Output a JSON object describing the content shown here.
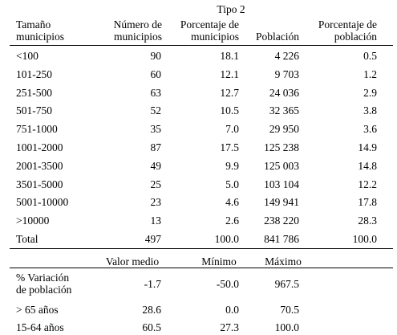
{
  "title": "Tipo 2",
  "headers": {
    "size_line1": "Tamaño",
    "size_line2": "municipios",
    "count_line1": "Número de",
    "count_line2": "municipios",
    "pct_muni_line1": "Porcentaje de",
    "pct_muni_line2": "municipios",
    "population": "Población",
    "pct_pop_line1": "Porcentaje de",
    "pct_pop_line2": "población"
  },
  "rows": [
    {
      "size": "<100",
      "count": "90",
      "pct_muni": "18.1",
      "population": "4 226",
      "pct_pop": "0.5"
    },
    {
      "size": "101-250",
      "count": "60",
      "pct_muni": "12.1",
      "population": "9 703",
      "pct_pop": "1.2"
    },
    {
      "size": "251-500",
      "count": "63",
      "pct_muni": "12.7",
      "population": "24 036",
      "pct_pop": "2.9"
    },
    {
      "size": "501-750",
      "count": "52",
      "pct_muni": "10.5",
      "population": "32 365",
      "pct_pop": "3.8"
    },
    {
      "size": "751-1000",
      "count": "35",
      "pct_muni": "7.0",
      "population": "29 950",
      "pct_pop": "3.6"
    },
    {
      "size": "1001-2000",
      "count": "87",
      "pct_muni": "17.5",
      "population": "125 238",
      "pct_pop": "14.9"
    },
    {
      "size": "2001-3500",
      "count": "49",
      "pct_muni": "9.9",
      "population": "125 003",
      "pct_pop": "14.8"
    },
    {
      "size": "3501-5000",
      "count": "25",
      "pct_muni": "5.0",
      "population": "103 104",
      "pct_pop": "12.2"
    },
    {
      "size": "5001-10000",
      "count": "23",
      "pct_muni": "4.6",
      "population": "149 941",
      "pct_pop": "17.8"
    },
    {
      "size": ">10000",
      "count": "13",
      "pct_muni": "2.6",
      "population": "238 220",
      "pct_pop": "28.3"
    }
  ],
  "total": {
    "label": "Total",
    "count": "497",
    "pct_muni": "100.0",
    "population": "841 786",
    "pct_pop": "100.0"
  },
  "stats_headers": {
    "mean": "Valor medio",
    "min": "Mínimo",
    "max": "Máximo"
  },
  "stats_rows": [
    {
      "label_line1": "% Variación",
      "label_line2": "de población",
      "mean": "-1.7",
      "min": "-50.0",
      "max": "967.5"
    },
    {
      "label": "> 65 años",
      "mean": "28.6",
      "min": "0.0",
      "max": "70.5"
    },
    {
      "label": "15-64 años",
      "mean": "60.5",
      "min": "27.3",
      "max": "100.0"
    }
  ]
}
